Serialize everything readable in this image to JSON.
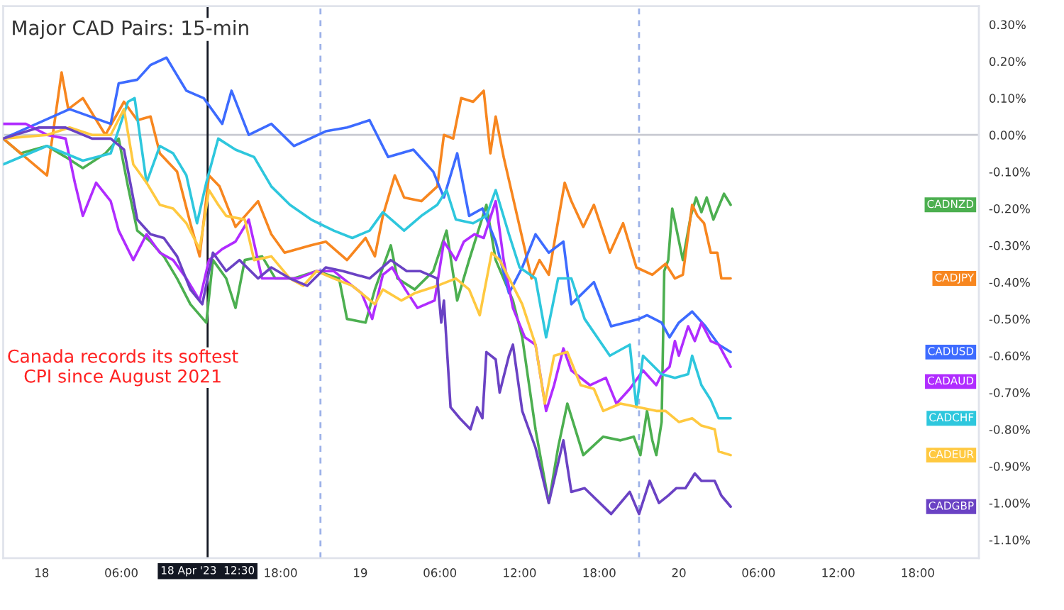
{
  "chart_data": {
    "type": "line",
    "title": "Major CAD Pairs: 15-min",
    "annotations": [
      "Canada records its softest\nCPI since August 2021"
    ],
    "xlim": [
      "2023-04-17T21:06",
      "2023-04-20T22:36"
    ],
    "xticks": [
      {
        "value": "2023-04-18T00:00",
        "label": "18"
      },
      {
        "value": "2023-04-18T06:00",
        "label": "06:00"
      },
      {
        "value": "2023-04-18T18:00",
        "label": "18:00"
      },
      {
        "value": "2023-04-19T00:00",
        "label": "19"
      },
      {
        "value": "2023-04-19T06:00",
        "label": "06:00"
      },
      {
        "value": "2023-04-19T12:00",
        "label": "12:00"
      },
      {
        "value": "2023-04-19T18:00",
        "label": "18:00"
      },
      {
        "value": "2023-04-20T00:00",
        "label": "20"
      },
      {
        "value": "2023-04-20T06:00",
        "label": "06:00"
      },
      {
        "value": "2023-04-20T12:00",
        "label": "12:00"
      },
      {
        "value": "2023-04-20T18:00",
        "label": "18:00"
      }
    ],
    "ylim": [
      -1.15,
      0.35
    ],
    "yticks": [
      {
        "value": 0.3,
        "label": "0.30%"
      },
      {
        "value": 0.2,
        "label": "0.20%"
      },
      {
        "value": 0.1,
        "label": "0.10%"
      },
      {
        "value": 0,
        "label": "0.00%"
      },
      {
        "value": -0.1,
        "label": "-0.10%"
      },
      {
        "value": -0.2,
        "label": "-0.20%"
      },
      {
        "value": -0.3,
        "label": "-0.30%"
      },
      {
        "value": -0.4,
        "label": "-0.40%"
      },
      {
        "value": -0.5,
        "label": "-0.50%"
      },
      {
        "value": -0.6,
        "label": "-0.60%"
      },
      {
        "value": -0.7,
        "label": "-0.70%"
      },
      {
        "value": -0.8,
        "label": "-0.80%"
      },
      {
        "value": -0.9,
        "label": "-0.90%"
      },
      {
        "value": -1.0,
        "label": "-1.00%"
      },
      {
        "value": -1.1,
        "label": "-1.10%"
      }
    ],
    "ref_lines": [
      {
        "axis": "y",
        "value": 0,
        "color": "#c8cad2"
      },
      {
        "axis": "x",
        "value": "2023-04-18T21:00",
        "color": "#9db2e8",
        "line_style": "dashed"
      },
      {
        "axis": "x",
        "value": "2023-04-19T21:00",
        "color": "#9db2e8",
        "line_style": "dashed"
      },
      {
        "axis": "x",
        "value": "2023-04-18T12:30",
        "label": "18 Apr '23  12:30",
        "color": "#131722"
      }
    ],
    "series": [
      {
        "name": "CADNZD",
        "color": "#4caf50",
        "x": [
          "2023-04-17T21:06",
          "2023-04-17T22:24",
          "2023-04-18T00:24",
          "2023-04-18T01:48",
          "2023-04-18T03:06",
          "2023-04-18T04:48",
          "2023-04-18T05:48",
          "2023-04-18T06:30",
          "2023-04-18T07:12",
          "2023-04-18T08:12",
          "2023-04-18T09:12",
          "2023-04-18T10:12",
          "2023-04-18T11:12",
          "2023-04-18T12:24",
          "2023-04-18T12:54",
          "2023-04-18T13:54",
          "2023-04-18T14:36",
          "2023-04-18T15:18",
          "2023-04-18T16:36",
          "2023-04-18T17:36",
          "2023-04-18T19:00",
          "2023-04-18T20:42",
          "2023-04-18T22:24",
          "2023-04-18T23:00",
          "2023-04-19T00:24",
          "2023-04-19T01:06",
          "2023-04-19T02:18",
          "2023-04-19T02:48",
          "2023-04-19T04:06",
          "2023-04-19T05:30",
          "2023-04-19T06:30",
          "2023-04-19T07:18",
          "2023-04-19T08:12",
          "2023-04-19T09:30",
          "2023-04-19T10:12",
          "2023-04-19T11:30",
          "2023-04-19T12:12",
          "2023-04-19T13:12",
          "2023-04-19T14:12",
          "2023-04-19T14:54",
          "2023-04-19T15:36",
          "2023-04-19T16:48",
          "2023-04-19T18:18",
          "2023-04-19T19:36",
          "2023-04-19T20:36",
          "2023-04-19T21:06",
          "2023-04-19T21:36",
          "2023-04-19T22:00",
          "2023-04-19T22:18",
          "2023-04-19T22:42",
          "2023-04-19T22:54",
          "2023-04-19T23:12",
          "2023-04-19T23:30",
          "2023-04-20T00:18",
          "2023-04-20T00:54",
          "2023-04-20T01:18",
          "2023-04-20T01:42",
          "2023-04-20T02:06",
          "2023-04-20T02:36",
          "2023-04-20T03:24",
          "2023-04-20T03:54"
        ],
        "values": [
          -0.01,
          -0.05,
          -0.03,
          -0.06,
          -0.09,
          -0.05,
          -0.01,
          -0.14,
          -0.26,
          -0.29,
          -0.33,
          -0.39,
          -0.46,
          -0.51,
          -0.34,
          -0.39,
          -0.47,
          -0.34,
          -0.33,
          -0.39,
          -0.39,
          -0.37,
          -0.39,
          -0.5,
          -0.51,
          -0.42,
          -0.3,
          -0.39,
          -0.42,
          -0.37,
          -0.26,
          -0.45,
          -0.34,
          -0.19,
          -0.34,
          -0.45,
          -0.55,
          -0.8,
          -1.0,
          -0.85,
          -0.73,
          -0.87,
          -0.82,
          -0.83,
          -0.82,
          -0.87,
          -0.75,
          -0.83,
          -0.87,
          -0.78,
          -0.37,
          -0.34,
          -0.2,
          -0.34,
          -0.22,
          -0.17,
          -0.21,
          -0.17,
          -0.23,
          -0.16,
          -0.19
        ]
      },
      {
        "name": "CADJPY",
        "color": "#f7861f",
        "x": [
          "2023-04-17T21:06",
          "2023-04-18T00:24",
          "2023-04-18T01:30",
          "2023-04-18T02:00",
          "2023-04-18T03:06",
          "2023-04-18T04:48",
          "2023-04-18T06:12",
          "2023-04-18T07:12",
          "2023-04-18T08:12",
          "2023-04-18T08:54",
          "2023-04-18T10:12",
          "2023-04-18T11:12",
          "2023-04-18T11:54",
          "2023-04-18T12:36",
          "2023-04-18T13:24",
          "2023-04-18T14:36",
          "2023-04-18T16:18",
          "2023-04-18T17:18",
          "2023-04-18T18:18",
          "2023-04-18T20:18",
          "2023-04-18T21:24",
          "2023-04-18T23:00",
          "2023-04-19T00:24",
          "2023-04-19T01:06",
          "2023-04-19T01:42",
          "2023-04-19T02:36",
          "2023-04-19T03:18",
          "2023-04-19T04:36",
          "2023-04-19T05:48",
          "2023-04-19T06:18",
          "2023-04-19T07:00",
          "2023-04-19T07:36",
          "2023-04-19T08:30",
          "2023-04-19T09:18",
          "2023-04-19T09:48",
          "2023-04-19T10:12",
          "2023-04-19T10:48",
          "2023-04-19T12:12",
          "2023-04-19T12:54",
          "2023-04-19T13:30",
          "2023-04-19T14:12",
          "2023-04-19T15:24",
          "2023-04-19T15:54",
          "2023-04-19T16:48",
          "2023-04-19T17:36",
          "2023-04-19T18:48",
          "2023-04-19T19:48",
          "2023-04-19T20:48",
          "2023-04-19T22:00",
          "2023-04-19T23:00",
          "2023-04-19T23:42",
          "2023-04-20T00:18",
          "2023-04-20T01:00",
          "2023-04-20T01:24",
          "2023-04-20T01:54",
          "2023-04-20T02:24",
          "2023-04-20T02:54",
          "2023-04-20T03:12",
          "2023-04-20T03:54"
        ],
        "values": [
          -0.01,
          -0.11,
          0.17,
          0.07,
          0.1,
          0,
          0.09,
          0.04,
          0.05,
          -0.05,
          -0.1,
          -0.24,
          -0.33,
          -0.11,
          -0.14,
          -0.25,
          -0.18,
          -0.27,
          -0.32,
          -0.3,
          -0.29,
          -0.34,
          -0.28,
          -0.33,
          -0.22,
          -0.11,
          -0.17,
          -0.18,
          -0.14,
          0,
          -0.01,
          0.1,
          0.09,
          0.12,
          -0.05,
          0.05,
          -0.06,
          -0.28,
          -0.39,
          -0.34,
          -0.38,
          -0.13,
          -0.18,
          -0.25,
          -0.19,
          -0.32,
          -0.24,
          -0.36,
          -0.38,
          -0.35,
          -0.39,
          -0.38,
          -0.19,
          -0.22,
          -0.24,
          -0.32,
          -0.32,
          -0.39,
          -0.39
        ]
      },
      {
        "name": "CADUSD",
        "color": "#3d6bff",
        "x": [
          "2023-04-17T21:06",
          "2023-04-18T02:06",
          "2023-04-18T05:12",
          "2023-04-18T05:48",
          "2023-04-18T07:12",
          "2023-04-18T08:12",
          "2023-04-18T09:24",
          "2023-04-18T09:54",
          "2023-04-18T10:54",
          "2023-04-18T12:12",
          "2023-04-18T13:36",
          "2023-04-18T14:18",
          "2023-04-18T15:36",
          "2023-04-18T17:18",
          "2023-04-18T19:00",
          "2023-04-18T21:24",
          "2023-04-18T23:00",
          "2023-04-19T00:42",
          "2023-04-19T02:06",
          "2023-04-19T04:00",
          "2023-04-19T05:30",
          "2023-04-19T06:18",
          "2023-04-19T07:18",
          "2023-04-19T08:12",
          "2023-04-19T09:12",
          "2023-04-19T10:12",
          "2023-04-19T11:12",
          "2023-04-19T12:12",
          "2023-04-19T13:12",
          "2023-04-19T14:12",
          "2023-04-19T15:18",
          "2023-04-19T15:54",
          "2023-04-19T17:36",
          "2023-04-19T18:54",
          "2023-04-19T21:00",
          "2023-04-19T21:36",
          "2023-04-19T22:42",
          "2023-04-19T23:18",
          "2023-04-20T00:00",
          "2023-04-20T01:00",
          "2023-04-20T02:00",
          "2023-04-20T03:00",
          "2023-04-20T03:54"
        ],
        "values": [
          -0.01,
          0.07,
          0.03,
          0.14,
          0.15,
          0.19,
          0.21,
          0.18,
          0.12,
          0.1,
          0.03,
          0.12,
          0,
          0.03,
          -0.03,
          0.01,
          0.02,
          0.04,
          -0.06,
          -0.04,
          -0.1,
          -0.17,
          -0.05,
          -0.22,
          -0.2,
          -0.29,
          -0.43,
          -0.36,
          -0.27,
          -0.32,
          -0.29,
          -0.46,
          -0.4,
          -0.52,
          -0.5,
          -0.49,
          -0.51,
          -0.55,
          -0.51,
          -0.48,
          -0.52,
          -0.57,
          -0.59
        ]
      },
      {
        "name": "CADAUD",
        "color": "#b02cff",
        "x": [
          "2023-04-17T21:06",
          "2023-04-17T22:48",
          "2023-04-18T00:24",
          "2023-04-18T01:48",
          "2023-04-18T02:30",
          "2023-04-18T03:06",
          "2023-04-18T04:06",
          "2023-04-18T05:12",
          "2023-04-18T05:48",
          "2023-04-18T06:54",
          "2023-04-18T07:54",
          "2023-04-18T08:54",
          "2023-04-18T09:54",
          "2023-04-18T10:54",
          "2023-04-18T11:54",
          "2023-04-18T12:36",
          "2023-04-18T13:36",
          "2023-04-18T14:36",
          "2023-04-18T15:36",
          "2023-04-18T16:36",
          "2023-04-18T17:54",
          "2023-04-18T19:18",
          "2023-04-18T20:42",
          "2023-04-18T22:00",
          "2023-04-18T22:42",
          "2023-04-19T00:06",
          "2023-04-19T00:54",
          "2023-04-19T01:42",
          "2023-04-19T02:24",
          "2023-04-19T03:24",
          "2023-04-19T04:18",
          "2023-04-19T05:36",
          "2023-04-19T06:18",
          "2023-04-19T07:12",
          "2023-04-19T07:48",
          "2023-04-19T08:36",
          "2023-04-19T09:18",
          "2023-04-19T10:12",
          "2023-04-19T10:48",
          "2023-04-19T11:30",
          "2023-04-19T12:24",
          "2023-04-19T13:12",
          "2023-04-19T14:00",
          "2023-04-19T14:36",
          "2023-04-19T15:18",
          "2023-04-19T15:54",
          "2023-04-19T17:18",
          "2023-04-19T18:30",
          "2023-04-19T19:18",
          "2023-04-19T20:18",
          "2023-04-19T21:18",
          "2023-04-19T22:18",
          "2023-04-19T22:42",
          "2023-04-19T23:18",
          "2023-04-19T23:42",
          "2023-04-20T00:00",
          "2023-04-20T00:42",
          "2023-04-20T01:12",
          "2023-04-20T01:42",
          "2023-04-20T02:24",
          "2023-04-20T03:00",
          "2023-04-20T03:54"
        ],
        "values": [
          0.03,
          0.03,
          0,
          -0.01,
          -0.13,
          -0.22,
          -0.13,
          -0.18,
          -0.26,
          -0.34,
          -0.27,
          -0.32,
          -0.34,
          -0.39,
          -0.45,
          -0.34,
          -0.31,
          -0.29,
          -0.23,
          -0.39,
          -0.39,
          -0.39,
          -0.37,
          -0.37,
          -0.39,
          -0.43,
          -0.5,
          -0.38,
          -0.36,
          -0.42,
          -0.47,
          -0.45,
          -0.29,
          -0.34,
          -0.29,
          -0.27,
          -0.28,
          -0.18,
          -0.34,
          -0.47,
          -0.55,
          -0.57,
          -0.75,
          -0.68,
          -0.58,
          -0.64,
          -0.68,
          -0.66,
          -0.73,
          -0.69,
          -0.64,
          -0.68,
          -0.65,
          -0.63,
          -0.56,
          -0.6,
          -0.52,
          -0.56,
          -0.51,
          -0.56,
          -0.57,
          -0.63
        ]
      },
      {
        "name": "CADCHF",
        "color": "#2ec7dd",
        "x": [
          "2023-04-17T21:06",
          "2023-04-18T00:24",
          "2023-04-18T03:06",
          "2023-04-18T05:12",
          "2023-04-18T06:30",
          "2023-04-18T07:00",
          "2023-04-18T07:54",
          "2023-04-18T08:54",
          "2023-04-18T09:54",
          "2023-04-18T10:54",
          "2023-04-18T11:42",
          "2023-04-18T12:24",
          "2023-04-18T13:18",
          "2023-04-18T14:36",
          "2023-04-18T16:00",
          "2023-04-18T17:18",
          "2023-04-18T18:42",
          "2023-04-18T20:18",
          "2023-04-18T22:00",
          "2023-04-18T23:24",
          "2023-04-19T00:42",
          "2023-04-19T01:42",
          "2023-04-19T03:18",
          "2023-04-19T04:36",
          "2023-04-19T05:48",
          "2023-04-19T06:30",
          "2023-04-19T07:12",
          "2023-04-19T08:30",
          "2023-04-19T09:30",
          "2023-04-19T10:12",
          "2023-04-19T11:12",
          "2023-04-19T12:00",
          "2023-04-19T13:12",
          "2023-04-19T14:00",
          "2023-04-19T14:54",
          "2023-04-19T15:54",
          "2023-04-19T16:54",
          "2023-04-19T18:48",
          "2023-04-19T20:18",
          "2023-04-19T20:48",
          "2023-04-19T21:18",
          "2023-04-19T22:42",
          "2023-04-19T23:42",
          "2023-04-20T00:42",
          "2023-04-20T01:00",
          "2023-04-20T01:42",
          "2023-04-20T02:24",
          "2023-04-20T03:00",
          "2023-04-20T03:54"
        ],
        "values": [
          -0.08,
          -0.03,
          -0.07,
          -0.05,
          0.09,
          0.1,
          -0.13,
          -0.03,
          -0.05,
          -0.11,
          -0.24,
          -0.13,
          -0.01,
          -0.04,
          -0.06,
          -0.14,
          -0.19,
          -0.23,
          -0.26,
          -0.28,
          -0.26,
          -0.21,
          -0.26,
          -0.22,
          -0.19,
          -0.15,
          -0.23,
          -0.24,
          -0.22,
          -0.15,
          -0.27,
          -0.36,
          -0.39,
          -0.55,
          -0.39,
          -0.39,
          -0.5,
          -0.6,
          -0.57,
          -0.74,
          -0.6,
          -0.65,
          -0.66,
          -0.65,
          -0.6,
          -0.68,
          -0.72,
          -0.77,
          -0.77
        ]
      },
      {
        "name": "CADEUR",
        "color": "#ffc940",
        "x": [
          "2023-04-17T21:06",
          "2023-04-18T00:24",
          "2023-04-18T02:06",
          "2023-04-18T03:48",
          "2023-04-18T05:12",
          "2023-04-18T06:12",
          "2023-04-18T06:54",
          "2023-04-18T07:54",
          "2023-04-18T08:54",
          "2023-04-18T09:54",
          "2023-04-18T10:54",
          "2023-04-18T11:54",
          "2023-04-18T12:36",
          "2023-04-18T13:18",
          "2023-04-18T13:54",
          "2023-04-18T15:18",
          "2023-04-18T16:00",
          "2023-04-18T17:18",
          "2023-04-18T18:42",
          "2023-04-18T19:42",
          "2023-04-18T20:42",
          "2023-04-18T22:00",
          "2023-04-18T23:24",
          "2023-04-19T01:06",
          "2023-04-19T01:42",
          "2023-04-19T03:06",
          "2023-04-19T04:06",
          "2023-04-19T05:48",
          "2023-04-19T07:12",
          "2023-04-19T08:12",
          "2023-04-19T09:00",
          "2023-04-19T09:54",
          "2023-04-19T10:30",
          "2023-04-19T11:30",
          "2023-04-19T12:12",
          "2023-04-19T13:12",
          "2023-04-19T13:54",
          "2023-04-19T14:36",
          "2023-04-19T15:36",
          "2023-04-19T16:36",
          "2023-04-19T17:36",
          "2023-04-19T18:18",
          "2023-04-19T19:36",
          "2023-04-19T21:00",
          "2023-04-19T22:18",
          "2023-04-19T23:00",
          "2023-04-20T00:00",
          "2023-04-20T01:00",
          "2023-04-20T01:42",
          "2023-04-20T02:42",
          "2023-04-20T03:00",
          "2023-04-20T03:54"
        ],
        "values": [
          -0.01,
          0,
          0.02,
          0,
          0,
          0.07,
          -0.08,
          -0.13,
          -0.19,
          -0.2,
          -0.24,
          -0.31,
          -0.15,
          -0.19,
          -0.22,
          -0.23,
          -0.34,
          -0.33,
          -0.39,
          -0.41,
          -0.37,
          -0.39,
          -0.41,
          -0.46,
          -0.42,
          -0.45,
          -0.43,
          -0.41,
          -0.39,
          -0.42,
          -0.49,
          -0.32,
          -0.34,
          -0.41,
          -0.46,
          -0.57,
          -0.73,
          -0.6,
          -0.59,
          -0.68,
          -0.69,
          -0.75,
          -0.73,
          -0.74,
          -0.75,
          -0.75,
          -0.78,
          -0.77,
          -0.79,
          -0.8,
          -0.86,
          -0.87
        ]
      },
      {
        "name": "CADGBP",
        "color": "#6a42c4",
        "x": [
          "2023-04-17T21:06",
          "2023-04-17T23:48",
          "2023-04-18T01:48",
          "2023-04-18T03:48",
          "2023-04-18T05:12",
          "2023-04-18T06:12",
          "2023-04-18T07:12",
          "2023-04-18T08:12",
          "2023-04-18T09:12",
          "2023-04-18T10:12",
          "2023-04-18T11:12",
          "2023-04-18T12:06",
          "2023-04-18T12:54",
          "2023-04-18T13:54",
          "2023-04-18T14:54",
          "2023-04-18T16:18",
          "2023-04-18T17:18",
          "2023-04-18T18:42",
          "2023-04-18T20:00",
          "2023-04-18T21:24",
          "2023-04-18T22:42",
          "2023-04-19T00:42",
          "2023-04-19T02:18",
          "2023-04-19T03:30",
          "2023-04-19T04:30",
          "2023-04-19T05:48",
          "2023-04-19T06:06",
          "2023-04-19T06:18",
          "2023-04-19T06:48",
          "2023-04-19T07:30",
          "2023-04-19T08:18",
          "2023-04-19T08:48",
          "2023-04-19T09:12",
          "2023-04-19T09:30",
          "2023-04-19T10:12",
          "2023-04-19T10:30",
          "2023-04-19T11:12",
          "2023-04-19T11:30",
          "2023-04-19T12:12",
          "2023-04-19T13:12",
          "2023-04-19T14:12",
          "2023-04-19T15:18",
          "2023-04-19T15:54",
          "2023-04-19T16:54",
          "2023-04-19T18:54",
          "2023-04-19T20:18",
          "2023-04-19T21:00",
          "2023-04-19T21:48",
          "2023-04-19T22:30",
          "2023-04-19T23:12",
          "2023-04-19T23:48",
          "2023-04-20T00:30",
          "2023-04-20T01:12",
          "2023-04-20T01:42",
          "2023-04-20T02:42",
          "2023-04-20T03:12",
          "2023-04-20T03:54"
        ],
        "values": [
          -0.01,
          0.02,
          0.02,
          -0.01,
          -0.01,
          -0.04,
          -0.23,
          -0.27,
          -0.28,
          -0.33,
          -0.42,
          -0.46,
          -0.32,
          -0.37,
          -0.34,
          -0.39,
          -0.36,
          -0.39,
          -0.41,
          -0.36,
          -0.37,
          -0.39,
          -0.34,
          -0.37,
          -0.37,
          -0.39,
          -0.51,
          -0.45,
          -0.74,
          -0.77,
          -0.8,
          -0.74,
          -0.77,
          -0.59,
          -0.61,
          -0.7,
          -0.6,
          -0.57,
          -0.75,
          -0.85,
          -1.0,
          -0.83,
          -0.97,
          -0.96,
          -1.03,
          -0.97,
          -1.03,
          -0.94,
          -1.0,
          -0.98,
          -0.96,
          -0.96,
          -0.92,
          -0.94,
          -0.94,
          -0.98,
          -1.01
        ]
      }
    ]
  }
}
